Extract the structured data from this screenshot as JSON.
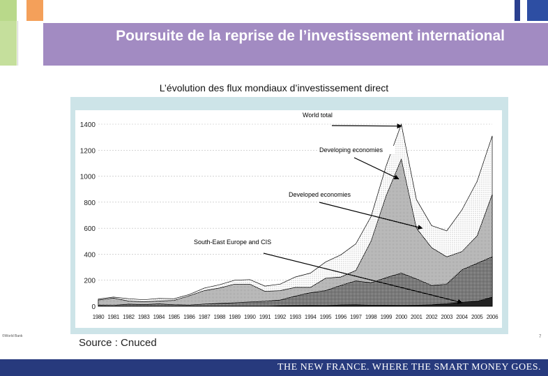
{
  "slide": {
    "title": "Poursuite de la reprise de l’investissement international",
    "subtitle": "L’évolution des flux mondiaux d’investissement direct",
    "source": "Source : Cnuced",
    "corner_note": "©World Bank",
    "page_number": "7",
    "footer": "THE NEW FRANCE. WHERE THE SMART MONEY GOES.",
    "colors": {
      "title_band": "#a28bc2",
      "footer_bar": "#273a7d",
      "chart_frame": "#cde4e8"
    }
  },
  "chart_data": {
    "type": "area",
    "title": "L’évolution des flux mondiaux d’investissement direct",
    "xlabel": "",
    "ylabel": "",
    "ylim": [
      0,
      1400
    ],
    "yticks": [
      0,
      200,
      400,
      600,
      800,
      1000,
      1200,
      1400
    ],
    "categories": [
      "1980",
      "1981",
      "1982",
      "1983",
      "1984",
      "1985",
      "1986",
      "1987",
      "1988",
      "1989",
      "1990",
      "1991",
      "1992",
      "1993",
      "1994",
      "1995",
      "1996",
      "1997",
      "1998",
      "1999",
      "2000",
      "2001",
      "2002",
      "2003",
      "2004",
      "2005",
      "2006"
    ],
    "series": [
      {
        "name": "World total",
        "values": [
          55,
          70,
          58,
          50,
          60,
          58,
          90,
          140,
          165,
          200,
          205,
          155,
          170,
          225,
          255,
          340,
          395,
          480,
          690,
          1080,
          1400,
          820,
          620,
          580,
          740,
          960,
          1310
        ]
      },
      {
        "name": "Developed economies",
        "values": [
          47,
          62,
          40,
          35,
          40,
          45,
          80,
          120,
          140,
          170,
          170,
          115,
          120,
          145,
          145,
          215,
          225,
          275,
          500,
          850,
          1130,
          600,
          450,
          380,
          420,
          540,
          860
        ]
      },
      {
        "name": "Developing economies",
        "values": [
          8,
          7,
          16,
          13,
          18,
          12,
          9,
          17,
          22,
          27,
          33,
          38,
          48,
          78,
          104,
          120,
          160,
          195,
          180,
          220,
          255,
          210,
          160,
          170,
          280,
          330,
          380
        ]
      },
      {
        "name": "South-East Europe and CIS",
        "values": [
          0,
          0,
          0,
          0,
          0,
          0,
          0,
          0,
          0,
          0,
          0,
          0,
          3,
          5,
          6,
          5,
          10,
          12,
          8,
          8,
          7,
          8,
          11,
          20,
          30,
          38,
          70
        ]
      }
    ],
    "annotations": [
      "World total",
      "Developing economies",
      "Developed economies",
      "South-East Europe and CIS"
    ]
  }
}
